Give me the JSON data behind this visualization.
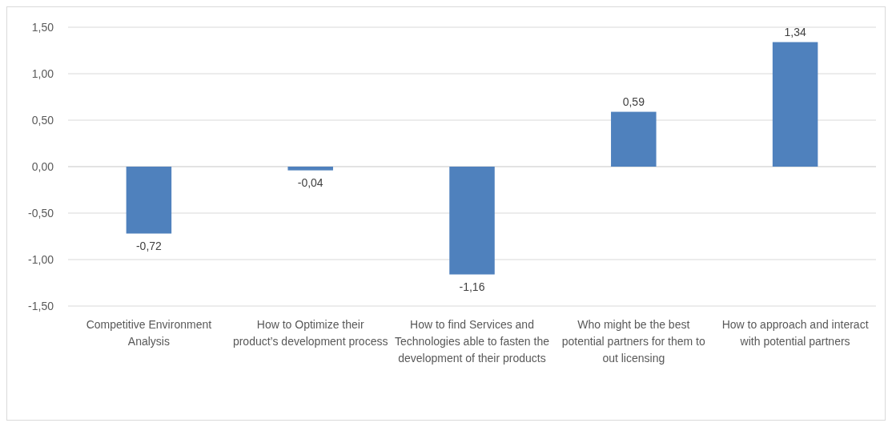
{
  "chart_data": {
    "type": "bar",
    "categories": [
      "Competitive Environment Analysis",
      "How to Optimize their product’s development process",
      "How to find Services and Technologies able to fasten the development of their products",
      "Who might be the best potential partners for them to out licensing",
      "How to approach and interact with potential partners"
    ],
    "values": [
      -0.72,
      -0.04,
      -1.16,
      0.59,
      1.34
    ],
    "value_labels": [
      "-0,72",
      "-0,04",
      "-1,16",
      "0,59",
      "1,34"
    ],
    "color": "#4f81bd",
    "ylim": [
      -1.5,
      1.5
    ],
    "yticks": [
      {
        "value": -1.5,
        "label": "-1,50"
      },
      {
        "value": -1.0,
        "label": "-1,00"
      },
      {
        "value": -0.5,
        "label": "-0,50"
      },
      {
        "value": 0,
        "label": "0,00"
      },
      {
        "value": 0.5,
        "label": "0,50"
      },
      {
        "value": 1.0,
        "label": "1,00"
      },
      {
        "value": 1.5,
        "label": "1,50"
      }
    ],
    "grid": true
  }
}
